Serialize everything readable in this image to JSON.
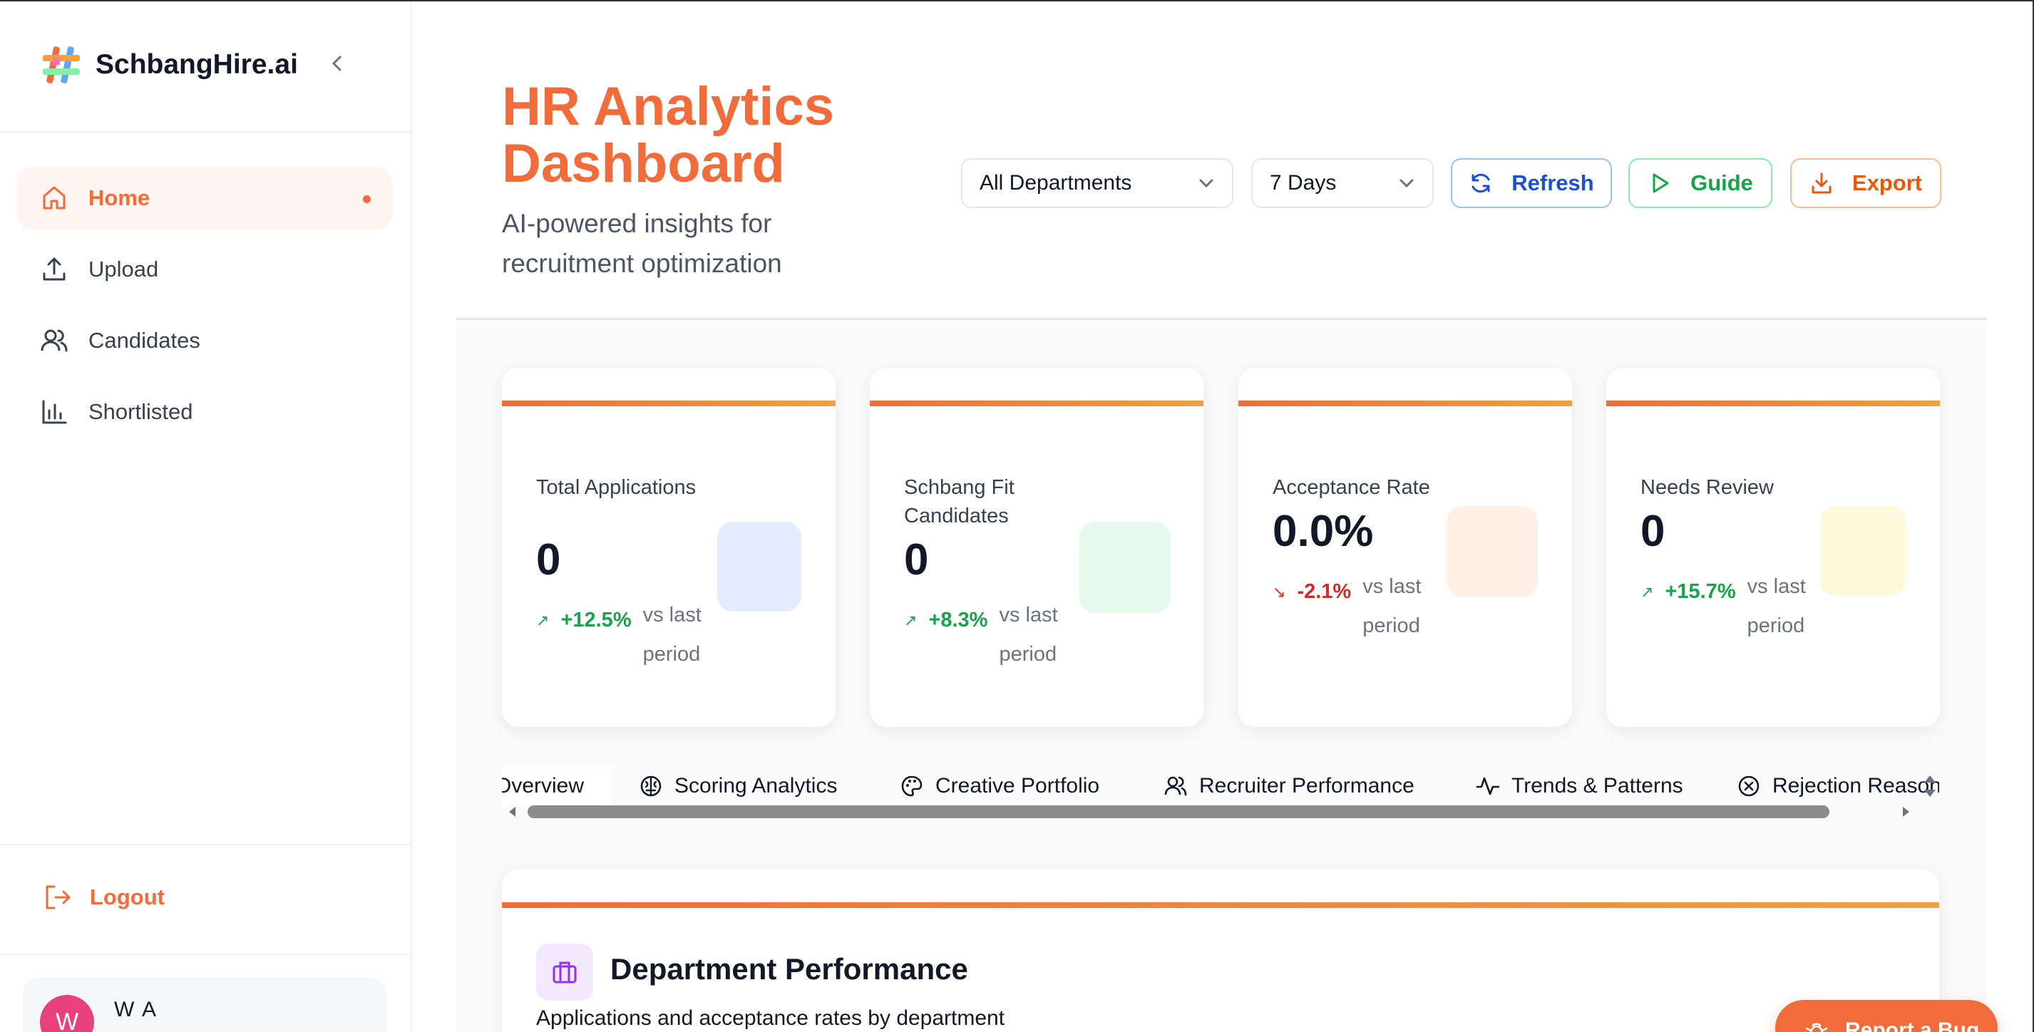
{
  "sidebar": {
    "brand": "SchbangHire.ai",
    "collapse_icon": "chevron-left-icon",
    "items": [
      {
        "label": "Home",
        "icon": "home-icon",
        "active": true
      },
      {
        "label": "Upload",
        "icon": "upload-icon",
        "active": false
      },
      {
        "label": "Candidates",
        "icon": "users-icon",
        "active": false
      },
      {
        "label": "Shortlisted",
        "icon": "bar-chart-icon",
        "active": false
      }
    ],
    "logout_label": "Logout",
    "user": {
      "initial": "W",
      "name": "W A"
    }
  },
  "header": {
    "title": "HR Analytics Dashboard",
    "subtitle": "AI-powered insights for recruitment optimization",
    "department_select": "All Departments",
    "period_select": "7 Days",
    "refresh_label": "Refresh",
    "guide_label": "Guide",
    "export_label": "Export"
  },
  "stats": [
    {
      "label": "Total Applications",
      "value": "0",
      "change": "+12.5%",
      "direction": "up",
      "vs": "vs last period",
      "icon_color": "#e4edfd"
    },
    {
      "label": "Schbang Fit Candidates",
      "value": "0",
      "change": "+8.3%",
      "direction": "up",
      "vs": "vs last period",
      "icon_color": "#e5f9ec"
    },
    {
      "label": "Acceptance Rate",
      "value": "0.0%",
      "change": "-2.1%",
      "direction": "down",
      "vs": "vs last period",
      "icon_color": "#fff0e5"
    },
    {
      "label": "Needs Review",
      "value": "0",
      "change": "+15.7%",
      "direction": "up",
      "vs": "vs last period",
      "icon_color": "#fff8dc"
    }
  ],
  "tabs": [
    {
      "label": "Overview",
      "icon": ""
    },
    {
      "label": "Scoring Analytics",
      "icon": "brain-icon"
    },
    {
      "label": "Creative Portfolio",
      "icon": "palette-icon"
    },
    {
      "label": "Recruiter Performance",
      "icon": "users-icon"
    },
    {
      "label": "Trends & Patterns",
      "icon": "activity-icon"
    },
    {
      "label": "Rejection Reasons",
      "icon": "x-circle-icon"
    }
  ],
  "department_performance": {
    "title": "Department Performance",
    "subtitle": "Applications and acceptance rates by department"
  },
  "report_bug_label": "Report a Bug",
  "colors": {
    "accent": "#f26b3a",
    "up": "#16a34a",
    "down": "#dc2626"
  }
}
